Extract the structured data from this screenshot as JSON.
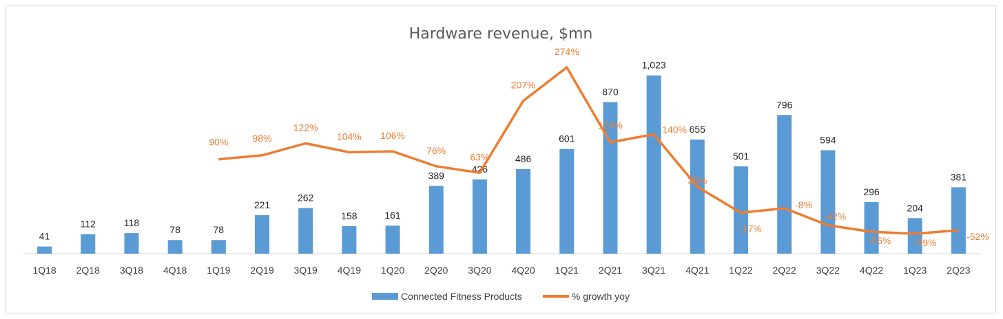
{
  "chart_data": {
    "type": "bar",
    "title": "Hardware revenue, $mn",
    "categories": [
      "1Q18",
      "2Q18",
      "3Q18",
      "4Q18",
      "1Q19",
      "2Q19",
      "3Q19",
      "4Q19",
      "1Q20",
      "2Q20",
      "3Q20",
      "4Q20",
      "1Q21",
      "2Q21",
      "3Q21",
      "4Q21",
      "1Q22",
      "2Q22",
      "3Q22",
      "4Q22",
      "1Q23",
      "2Q23"
    ],
    "series": [
      {
        "name": "Connected Fitness Products",
        "type": "bar",
        "color": "#5b9bd5",
        "values": [
          41,
          112,
          118,
          78,
          78,
          221,
          262,
          158,
          161,
          389,
          426,
          486,
          601,
          870,
          1023,
          655,
          501,
          796,
          594,
          296,
          204,
          381
        ],
        "labels": [
          "41",
          "112",
          "118",
          "78",
          "78",
          "221",
          "262",
          "158",
          "161",
          "389",
          "426",
          "486",
          "601",
          "870",
          "1,023",
          "655",
          "501",
          "796",
          "594",
          "296",
          "204",
          "381"
        ]
      },
      {
        "name": "% growth yoy",
        "type": "line",
        "color": "#ed7d31",
        "values": [
          null,
          null,
          null,
          null,
          90,
          98,
          122,
          104,
          106,
          76,
          63,
          207,
          274,
          124,
          140,
          35,
          -17,
          -8,
          -42,
          -55,
          -59,
          -52
        ],
        "labels": [
          "",
          "",
          "",
          "",
          "90%",
          "98%",
          "122%",
          "104%",
          "106%",
          "76%",
          "63%",
          "207%",
          "274%",
          "124%",
          "140%",
          "35%",
          "-17%",
          "-8%",
          "-42%",
          "-55%",
          "-59%",
          "-52%"
        ]
      }
    ],
    "bar_ylim": [
      0,
      1100
    ],
    "line_ylim": [
      -80,
      300
    ],
    "grid": false,
    "legend_position": "bottom"
  }
}
